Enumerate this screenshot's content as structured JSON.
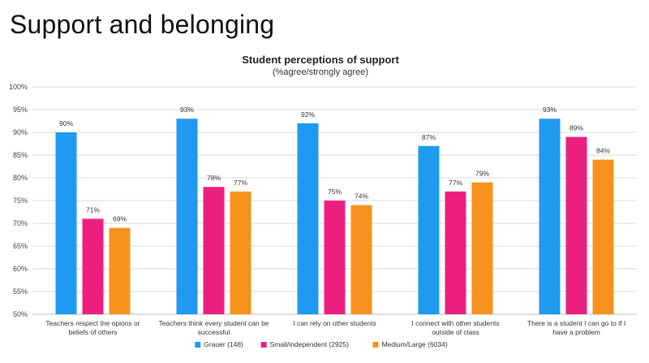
{
  "slide": {
    "title": "Support and belonging"
  },
  "chart_data": {
    "type": "bar",
    "title": "Student perceptions of support",
    "subtitle": "(%agree/strongly agree)",
    "xlabel": "",
    "ylabel": "",
    "ylim": [
      50,
      100
    ],
    "yticks": [
      50,
      55,
      60,
      65,
      70,
      75,
      80,
      85,
      90,
      95,
      100
    ],
    "grid": true,
    "legend_position": "bottom",
    "categories": [
      [
        "Teachers respect the opions or",
        "beliefs of others"
      ],
      [
        "Teachers think every student can be",
        "successful"
      ],
      [
        "I can rely on other students"
      ],
      [
        "I connect with other students",
        "outside of class"
      ],
      [
        "There is a student I can go to if I",
        "have a problem"
      ]
    ],
    "series": [
      {
        "name": "Grauer (148)",
        "color": "#1e9bf0",
        "values": [
          90,
          93,
          92,
          87,
          93
        ],
        "labels": [
          "90%",
          "93%",
          "92%",
          "87%",
          "93%"
        ]
      },
      {
        "name": "Small/independent (2925)",
        "color": "#ec1f7f",
        "values": [
          71,
          78,
          75,
          77,
          89
        ],
        "labels": [
          "71%",
          "78%",
          "75%",
          "77%",
          "89%"
        ]
      },
      {
        "name": "Medium/Large (6034)",
        "color": "#f8921e",
        "values": [
          69,
          77,
          74,
          79,
          84
        ],
        "labels": [
          "69%",
          "77%",
          "74%",
          "79%",
          "84%"
        ]
      }
    ]
  }
}
